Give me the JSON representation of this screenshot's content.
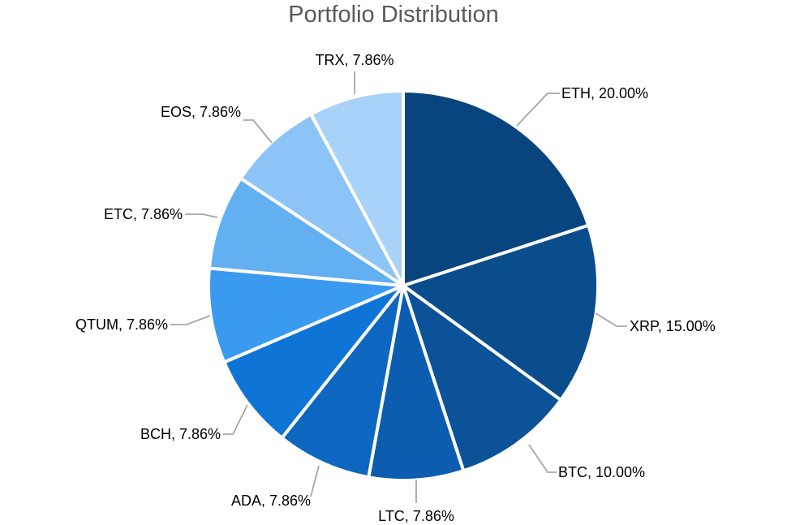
{
  "chart_data": {
    "type": "pie",
    "title": "Portfolio Distribution",
    "start_angle_deg": 0,
    "direction": "clockwise",
    "slices": [
      {
        "label": "ETH",
        "value": 20.0,
        "display": "ETH, 20.00%",
        "color": "#08457e"
      },
      {
        "label": "XRP",
        "value": 15.0,
        "display": "XRP, 15.00%",
        "color": "#0a4d8c"
      },
      {
        "label": "BTC",
        "value": 10.0,
        "display": "BTC, 10.00%",
        "color": "#0b5299"
      },
      {
        "label": "LTC",
        "value": 7.86,
        "display": "LTC, 7.86%",
        "color": "#0c5daf"
      },
      {
        "label": "ADA",
        "value": 7.86,
        "display": "ADA, 7.86%",
        "color": "#0d66c0"
      },
      {
        "label": "BCH",
        "value": 7.86,
        "display": "BCH, 7.86%",
        "color": "#0e75d6"
      },
      {
        "label": "QTUM",
        "value": 7.86,
        "display": "QTUM, 7.86%",
        "color": "#3a9af0"
      },
      {
        "label": "ETC",
        "value": 7.86,
        "display": "ETC, 7.86%",
        "color": "#62aff2"
      },
      {
        "label": "EOS",
        "value": 7.86,
        "display": "EOS, 7.86%",
        "color": "#8cc4f7"
      },
      {
        "label": "TRX",
        "value": 7.86,
        "display": "TRX, 7.86%",
        "color": "#a9d2f8"
      }
    ],
    "data_labels": "outside with leader lines",
    "legend": "none"
  }
}
